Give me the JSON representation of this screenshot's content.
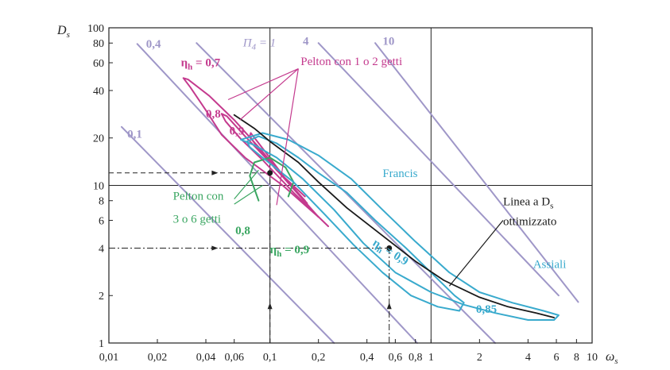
{
  "chart_data": {
    "type": "line",
    "title": "",
    "xlabel": "ω",
    "xlabel_sub": "s",
    "ylabel": "D",
    "ylabel_sub": "s",
    "x_scale": "log",
    "y_scale": "log",
    "xlim": [
      0.01,
      10
    ],
    "ylim": [
      1,
      100
    ],
    "x_ticks": [
      {
        "v": 0.01,
        "t": "0,01"
      },
      {
        "v": 0.02,
        "t": "0,02"
      },
      {
        "v": 0.04,
        "t": "0,04"
      },
      {
        "v": 0.06,
        "t": "0,06"
      },
      {
        "v": 0.1,
        "t": "0,1"
      },
      {
        "v": 0.2,
        "t": "0,2"
      },
      {
        "v": 0.4,
        "t": "0,4"
      },
      {
        "v": 0.6,
        "t": "0,6"
      },
      {
        "v": 0.8,
        "t": "0,8"
      },
      {
        "v": 1,
        "t": "1"
      },
      {
        "v": 2,
        "t": "2"
      },
      {
        "v": 4,
        "t": "4"
      },
      {
        "v": 6,
        "t": "6"
      },
      {
        "v": 8,
        "t": "8"
      },
      {
        "v": 10,
        "t": "10"
      }
    ],
    "y_ticks": [
      {
        "v": 1,
        "t": "1"
      },
      {
        "v": 2,
        "t": "2"
      },
      {
        "v": 4,
        "t": "4"
      },
      {
        "v": 6,
        "t": "6"
      },
      {
        "v": 8,
        "t": "8"
      },
      {
        "v": 10,
        "t": "10"
      },
      {
        "v": 20,
        "t": "20"
      },
      {
        "v": 40,
        "t": "40"
      },
      {
        "v": 60,
        "t": "60"
      },
      {
        "v": 80,
        "t": "80"
      },
      {
        "v": 100,
        "t": "100"
      }
    ],
    "grid": "lines at ω=0,1 and ω=1; D=10",
    "colors": {
      "pi4": "#9f97c8",
      "pelton12": "#c43a8e",
      "pelton36": "#3aa661",
      "francis": "#39aacd",
      "optimal": "#1a1a1a",
      "annotation": "#1a1a1a"
    },
    "series": [
      {
        "name": "0,1",
        "group": "pi4",
        "x": [
          0.012,
          0.25
        ],
        "y": [
          23.5,
          1.0
        ]
      },
      {
        "name": "0,4",
        "group": "pi4",
        "x": [
          0.015,
          0.82
        ],
        "y": [
          79,
          1.0
        ]
      },
      {
        "name": "Π4 = 1",
        "group": "pi4",
        "x": [
          0.035,
          2.5
        ],
        "y": [
          80,
          1.0
        ]
      },
      {
        "name": "4",
        "group": "pi4",
        "x": [
          0.2,
          6.2
        ],
        "y": [
          80,
          2.0
        ]
      },
      {
        "name": "10",
        "group": "pi4",
        "x": [
          0.45,
          8.2
        ],
        "y": [
          80,
          1.82
        ]
      },
      {
        "name": "Pelton 1o2 ηh=0,7",
        "group": "pelton12",
        "x": [
          0.2,
          0.12,
          0.07,
          0.05,
          0.04,
          0.032,
          0.029,
          0.031,
          0.042,
          0.06,
          0.085,
          0.12,
          0.17
        ],
        "y": [
          6.3,
          10,
          15,
          21,
          30,
          42,
          48,
          47,
          37,
          26,
          17.5,
          11.5,
          7.7
        ]
      },
      {
        "name": "Pelton 1o2 ηh=0,8",
        "group": "pelton12",
        "x": [
          0.23,
          0.14,
          0.09,
          0.065,
          0.053,
          0.05,
          0.054,
          0.07,
          0.1,
          0.14,
          0.2
        ],
        "y": [
          5.5,
          9.0,
          14.5,
          20,
          25.5,
          28.5,
          27.5,
          20.5,
          14,
          9.5,
          6.3
        ]
      },
      {
        "name": "Pelton 1o2 ηh=0,9",
        "group": "pelton12",
        "x": [
          0.165,
          0.11,
          0.085,
          0.075,
          0.076,
          0.095,
          0.125,
          0.165
        ],
        "y": [
          8.5,
          12.5,
          17,
          20.5,
          21.5,
          16,
          11,
          8.0
        ]
      },
      {
        "name": "Pelton 3o6 ηh=0,8",
        "group": "pelton36",
        "x": [
          0.085,
          0.075,
          0.08,
          0.1,
          0.125,
          0.14,
          0.13
        ],
        "y": [
          8.0,
          11.5,
          14,
          15,
          13,
          10.5,
          8.5
        ]
      },
      {
        "name": "Francis 0,9",
        "group": "francis",
        "x": [
          0.072,
          0.085,
          0.11,
          0.15,
          0.2,
          0.3,
          0.45,
          0.7,
          1.0,
          1.4,
          1.6,
          1.5,
          1.1,
          0.75,
          0.5,
          0.33,
          0.22,
          0.14,
          0.09,
          0.075,
          0.072
        ],
        "y": [
          19,
          20.5,
          18.5,
          15,
          12,
          9.0,
          6.0,
          4.0,
          2.8,
          2.0,
          1.8,
          1.6,
          1.7,
          2.0,
          2.8,
          4.2,
          6.5,
          10.5,
          15,
          17.5,
          19
        ]
      },
      {
        "name": "Francis 0,85",
        "group": "francis",
        "x": [
          0.066,
          0.09,
          0.13,
          0.2,
          0.32,
          0.5,
          0.8,
          1.3,
          2.0,
          3.2,
          5.0,
          6.2,
          5.8,
          4.0,
          2.5,
          1.6,
          1.0,
          0.6,
          0.38,
          0.25,
          0.16,
          0.11,
          0.08,
          0.066
        ],
        "y": [
          19.5,
          21.5,
          19.5,
          15.5,
          11,
          7.0,
          4.4,
          2.8,
          2.1,
          1.8,
          1.6,
          1.5,
          1.4,
          1.4,
          1.55,
          1.75,
          2.1,
          2.8,
          4.3,
          7.0,
          11,
          15,
          18,
          19.5
        ]
      },
      {
        "name": "Linea a Ds ottimizzato",
        "group": "optimal",
        "x": [
          0.06,
          0.08,
          0.1,
          0.15,
          0.2,
          0.3,
          0.5,
          0.8,
          1.2,
          2.0,
          3.0,
          4.5,
          5.8
        ],
        "y": [
          28,
          23,
          19,
          14,
          10.5,
          7.2,
          4.8,
          3.3,
          2.5,
          1.95,
          1.7,
          1.55,
          1.45
        ]
      }
    ],
    "markers": [
      {
        "x": 0.1,
        "y": 12
      },
      {
        "x": 0.55,
        "y": 4
      }
    ],
    "guides": [
      {
        "style": "dashed",
        "x": [
          0.01,
          0.1
        ],
        "y": [
          12,
          12
        ]
      },
      {
        "style": "dashed",
        "x": [
          0.1,
          0.1
        ],
        "y": [
          1,
          12
        ]
      },
      {
        "style": "dashdot",
        "x": [
          0.01,
          0.55
        ],
        "y": [
          4,
          4
        ]
      },
      {
        "style": "dashdot",
        "x": [
          0.55,
          0.55
        ],
        "y": [
          1,
          4
        ]
      }
    ],
    "arrows": [
      {
        "x": 0.045,
        "y": 12,
        "dir": "right"
      },
      {
        "x": 0.045,
        "y": 4,
        "dir": "right"
      },
      {
        "x": 0.1,
        "y": 1.7,
        "dir": "up"
      },
      {
        "x": 0.55,
        "y": 1.7,
        "dir": "up"
      }
    ],
    "labels": [
      {
        "key": "pi_01",
        "text": "0,1",
        "x": 0.013,
        "y": 20,
        "group": "pi4",
        "bold": true
      },
      {
        "key": "pi_04",
        "text": "0,4",
        "x": 0.017,
        "y": 75,
        "group": "pi4",
        "bold": true
      },
      {
        "key": "pi_4",
        "text": "4",
        "x": 0.16,
        "y": 78,
        "group": "pi4",
        "bold": true
      },
      {
        "key": "pi_10",
        "text": "10",
        "x": 0.5,
        "y": 78,
        "group": "pi4",
        "bold": true
      },
      {
        "key": "eta07",
        "text": "η",
        "sub": "h",
        "after": " = 0,7",
        "x": 0.028,
        "y": 57,
        "group": "pelton12",
        "bold": true
      },
      {
        "key": "p08",
        "text": "0,8",
        "x": 0.04,
        "y": 27,
        "group": "pelton12",
        "bold": true
      },
      {
        "key": "p09",
        "text": "0,9",
        "x": 0.056,
        "y": 21,
        "group": "pelton12",
        "bold": true
      },
      {
        "key": "pelton12",
        "text": "Pelton con 1 o 2 getti",
        "x": 0.155,
        "y": 58,
        "group": "pelton12",
        "bold": false
      },
      {
        "key": "pelton36a",
        "text": "Pelton con",
        "x": 0.025,
        "y": 8.1,
        "group": "pelton36",
        "bold": false
      },
      {
        "key": "pelton36b",
        "text": "3 o 6 getti",
        "x": 0.025,
        "y": 5.8,
        "group": "pelton36",
        "bold": false
      },
      {
        "key": "g08",
        "text": "0,8",
        "x": 0.061,
        "y": 4.9,
        "group": "pelton36",
        "bold": true
      },
      {
        "key": "eta09",
        "text": "η",
        "sub": "h",
        "after": " = 0,9",
        "x": 0.1,
        "y": 3.7,
        "group": "pelton36",
        "bold": true
      },
      {
        "key": "francis",
        "text": "Francis",
        "x": 0.5,
        "y": 11.3,
        "group": "francis",
        "bold": false
      },
      {
        "key": "assiali",
        "text": "Assiali",
        "x": 4.3,
        "y": 3.0,
        "group": "francis",
        "bold": false
      },
      {
        "key": "f085",
        "text": "0,85",
        "x": 1.9,
        "y": 1.55,
        "group": "francis",
        "bold": true
      },
      {
        "key": "linea1",
        "text": "Linea a D",
        "sub": "s",
        "x": 2.8,
        "y": 7.5,
        "group": "annotation",
        "bold": false
      },
      {
        "key": "linea2",
        "text": "ottimizzato",
        "x": 2.8,
        "y": 5.6,
        "group": "annotation",
        "bold": false
      }
    ],
    "pi4_label": {
      "text": "Π",
      "sub": "4",
      "after": " = 1",
      "x": 0.068,
      "y": 76
    },
    "francis09_label": {
      "text": "η",
      "sub": "h",
      "after": " = 0,9",
      "x": 0.43,
      "y": 4.2,
      "angle": 32
    }
  }
}
